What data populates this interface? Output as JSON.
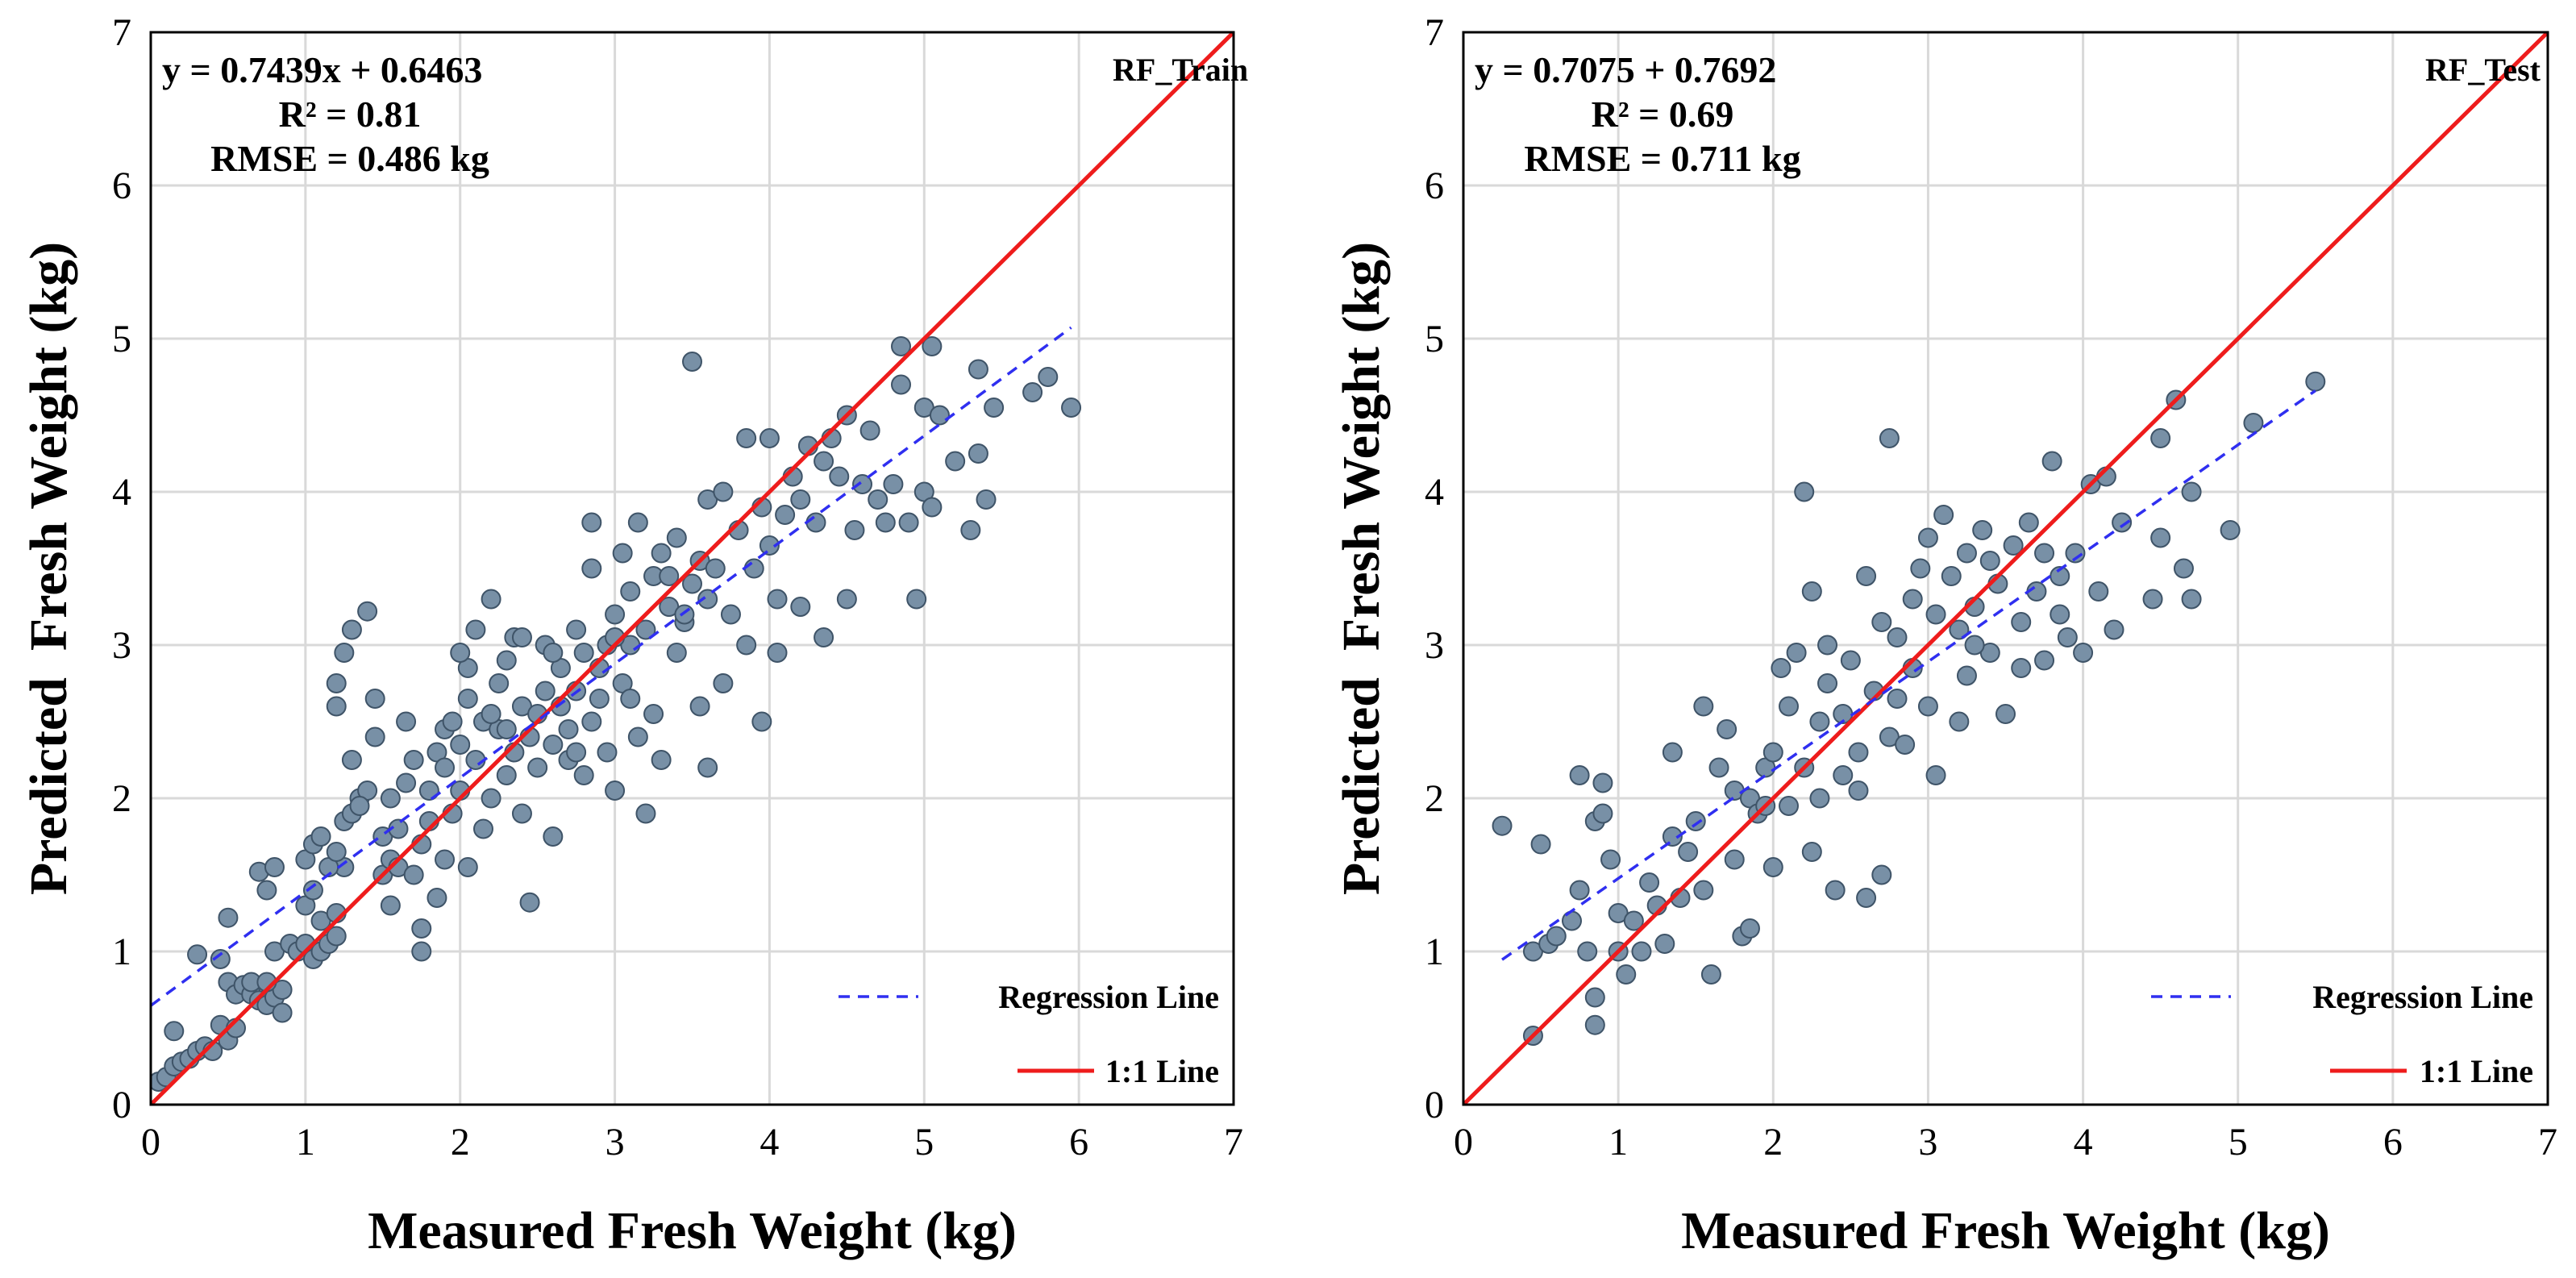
{
  "colors": {
    "point_fill": "#7890a6",
    "point_stroke": "#3f5468",
    "regression": "#2f2ff0",
    "identity": "#ee1c1c",
    "grid": "#d9d9d9",
    "axis": "#000000"
  },
  "chart_data": [
    {
      "type": "scatter",
      "panel_label": "RF_Train",
      "equation": "y = 0.7439x + 0.6463",
      "r2": "R² = 0.81",
      "rmse": "RMSE = 0.486 kg",
      "xlabel": "Measured Fresh Weight (kg)",
      "ylabel": "Predicted  Fresh Weight (kg)",
      "xlim": [
        0,
        7
      ],
      "ylim": [
        0,
        7
      ],
      "xticks": [
        "0",
        "1",
        "2",
        "3",
        "4",
        "5",
        "6",
        "7"
      ],
      "yticks": [
        "0",
        "1",
        "2",
        "3",
        "4",
        "5",
        "6",
        "7"
      ],
      "grid": true,
      "legend_position": "bottom-right",
      "legend": [
        {
          "label": "Regression Line",
          "style": "dashed"
        },
        {
          "label": "1:1 Line",
          "style": "solid"
        }
      ],
      "regression": {
        "slope": 0.7439,
        "intercept": 0.6463,
        "x_range": [
          0,
          5.95
        ]
      },
      "identity_line": {
        "x_range": [
          0,
          7
        ]
      },
      "points": [
        [
          0.05,
          0.15
        ],
        [
          0.1,
          0.18
        ],
        [
          0.15,
          0.25
        ],
        [
          0.2,
          0.28
        ],
        [
          0.25,
          0.3
        ],
        [
          0.3,
          0.35
        ],
        [
          0.35,
          0.38
        ],
        [
          0.15,
          0.48
        ],
        [
          0.4,
          0.35
        ],
        [
          0.45,
          0.52
        ],
        [
          0.5,
          0.42
        ],
        [
          0.55,
          0.5
        ],
        [
          0.3,
          0.98
        ],
        [
          0.45,
          0.95
        ],
        [
          0.5,
          0.8
        ],
        [
          0.55,
          0.72
        ],
        [
          0.6,
          0.78
        ],
        [
          0.65,
          0.72
        ],
        [
          0.7,
          0.68
        ],
        [
          0.75,
          0.65
        ],
        [
          0.8,
          0.7
        ],
        [
          0.85,
          0.6
        ],
        [
          0.85,
          0.75
        ],
        [
          0.65,
          0.8
        ],
        [
          0.75,
          0.8
        ],
        [
          0.7,
          1.52
        ],
        [
          0.5,
          1.22
        ],
        [
          0.75,
          1.4
        ],
        [
          0.8,
          1.55
        ],
        [
          0.8,
          1.0
        ],
        [
          0.9,
          1.05
        ],
        [
          0.95,
          1.0
        ],
        [
          1.0,
          1.05
        ],
        [
          1.05,
          0.95
        ],
        [
          1.1,
          1.0
        ],
        [
          1.15,
          1.05
        ],
        [
          1.2,
          1.1
        ],
        [
          1.0,
          1.3
        ],
        [
          1.05,
          1.4
        ],
        [
          1.1,
          1.2
        ],
        [
          1.2,
          1.25
        ],
        [
          1.25,
          1.55
        ],
        [
          1.0,
          1.6
        ],
        [
          1.05,
          1.7
        ],
        [
          1.1,
          1.75
        ],
        [
          1.15,
          1.55
        ],
        [
          1.2,
          1.65
        ],
        [
          1.25,
          1.85
        ],
        [
          1.3,
          1.9
        ],
        [
          1.35,
          2.0
        ],
        [
          1.4,
          2.05
        ],
        [
          1.2,
          2.6
        ],
        [
          1.2,
          2.75
        ],
        [
          1.25,
          2.95
        ],
        [
          1.3,
          3.1
        ],
        [
          1.4,
          3.22
        ],
        [
          1.3,
          2.25
        ],
        [
          1.35,
          1.95
        ],
        [
          1.45,
          2.4
        ],
        [
          1.45,
          2.65
        ],
        [
          1.5,
          1.5
        ],
        [
          1.5,
          1.75
        ],
        [
          1.55,
          1.6
        ],
        [
          1.55,
          2.0
        ],
        [
          1.6,
          1.55
        ],
        [
          1.6,
          1.8
        ],
        [
          1.65,
          2.1
        ],
        [
          1.7,
          2.25
        ],
        [
          1.7,
          1.5
        ],
        [
          1.75,
          1.7
        ],
        [
          1.75,
          1.0
        ],
        [
          1.75,
          1.15
        ],
        [
          1.8,
          1.85
        ],
        [
          1.8,
          2.05
        ],
        [
          1.85,
          2.3
        ],
        [
          1.85,
          1.35
        ],
        [
          1.9,
          2.45
        ],
        [
          1.9,
          2.2
        ],
        [
          1.95,
          1.9
        ],
        [
          1.95,
          2.5
        ],
        [
          2.0,
          2.05
        ],
        [
          2.0,
          2.35
        ],
        [
          2.05,
          2.65
        ],
        [
          2.05,
          1.55
        ],
        [
          2.05,
          2.85
        ],
        [
          2.1,
          3.1
        ],
        [
          2.1,
          2.25
        ],
        [
          2.15,
          2.5
        ],
        [
          2.15,
          1.8
        ],
        [
          2.2,
          2.0
        ],
        [
          2.2,
          3.3
        ],
        [
          2.25,
          2.75
        ],
        [
          2.25,
          2.45
        ],
        [
          2.3,
          2.15
        ],
        [
          2.3,
          2.9
        ],
        [
          2.35,
          3.05
        ],
        [
          2.35,
          2.3
        ],
        [
          2.4,
          2.6
        ],
        [
          2.4,
          1.9
        ],
        [
          2.45,
          2.4
        ],
        [
          2.45,
          1.32
        ],
        [
          2.5,
          2.55
        ],
        [
          2.5,
          2.2
        ],
        [
          2.55,
          2.7
        ],
        [
          2.55,
          3.0
        ],
        [
          2.6,
          2.35
        ],
        [
          2.6,
          1.75
        ],
        [
          2.65,
          2.6
        ],
        [
          2.65,
          2.85
        ],
        [
          2.7,
          2.45
        ],
        [
          2.7,
          2.25
        ],
        [
          2.75,
          2.7
        ],
        [
          2.75,
          3.1
        ],
        [
          2.8,
          2.95
        ],
        [
          2.8,
          2.15
        ],
        [
          2.85,
          2.5
        ],
        [
          2.85,
          3.5
        ],
        [
          2.85,
          3.8
        ],
        [
          2.9,
          2.65
        ],
        [
          2.9,
          2.85
        ],
        [
          2.95,
          3.0
        ],
        [
          2.95,
          2.3
        ],
        [
          3.0,
          3.2
        ],
        [
          3.0,
          2.05
        ],
        [
          3.05,
          2.75
        ],
        [
          3.05,
          3.6
        ],
        [
          3.1,
          3.35
        ],
        [
          3.1,
          3.0
        ],
        [
          3.15,
          2.4
        ],
        [
          3.15,
          3.8
        ],
        [
          3.2,
          3.1
        ],
        [
          3.2,
          1.9
        ],
        [
          3.25,
          3.45
        ],
        [
          3.25,
          2.55
        ],
        [
          3.3,
          3.6
        ],
        [
          3.3,
          2.25
        ],
        [
          3.35,
          3.25
        ],
        [
          3.35,
          3.45
        ],
        [
          3.4,
          2.95
        ],
        [
          3.4,
          3.7
        ],
        [
          3.45,
          3.15
        ],
        [
          3.5,
          3.4
        ],
        [
          3.5,
          4.85
        ],
        [
          3.55,
          3.55
        ],
        [
          3.55,
          2.6
        ],
        [
          3.6,
          3.3
        ],
        [
          3.6,
          3.95
        ],
        [
          3.6,
          2.2
        ],
        [
          3.65,
          3.5
        ],
        [
          3.7,
          4.0
        ],
        [
          3.7,
          2.75
        ],
        [
          3.75,
          3.2
        ],
        [
          3.8,
          3.75
        ],
        [
          3.85,
          4.35
        ],
        [
          3.85,
          3.0
        ],
        [
          3.9,
          3.5
        ],
        [
          3.95,
          2.5
        ],
        [
          3.95,
          3.9
        ],
        [
          4.0,
          3.65
        ],
        [
          4.0,
          4.35
        ],
        [
          4.05,
          3.3
        ],
        [
          4.05,
          2.95
        ],
        [
          4.1,
          3.85
        ],
        [
          4.15,
          4.1
        ],
        [
          4.2,
          3.95
        ],
        [
          4.2,
          3.25
        ],
        [
          4.25,
          4.3
        ],
        [
          4.3,
          3.8
        ],
        [
          4.35,
          4.2
        ],
        [
          4.35,
          3.05
        ],
        [
          4.4,
          4.35
        ],
        [
          4.45,
          4.1
        ],
        [
          4.5,
          4.5
        ],
        [
          4.5,
          3.3
        ],
        [
          4.55,
          3.75
        ],
        [
          4.6,
          4.05
        ],
        [
          4.65,
          4.4
        ],
        [
          4.7,
          3.95
        ],
        [
          4.75,
          3.8
        ],
        [
          4.8,
          4.05
        ],
        [
          4.85,
          4.7
        ],
        [
          4.85,
          4.95
        ],
        [
          4.9,
          3.8
        ],
        [
          4.95,
          3.3
        ],
        [
          5.0,
          4.55
        ],
        [
          5.0,
          4.0
        ],
        [
          5.05,
          4.95
        ],
        [
          5.05,
          3.9
        ],
        [
          5.1,
          4.5
        ],
        [
          5.2,
          4.2
        ],
        [
          5.3,
          3.75
        ],
        [
          5.35,
          4.25
        ],
        [
          5.35,
          4.8
        ],
        [
          5.4,
          3.95
        ],
        [
          5.45,
          4.55
        ],
        [
          5.7,
          4.65
        ],
        [
          5.8,
          4.75
        ],
        [
          5.95,
          4.55
        ],
        [
          2.2,
          2.55
        ],
        [
          2.6,
          2.95
        ],
        [
          3.0,
          3.05
        ],
        [
          3.45,
          3.2
        ],
        [
          1.65,
          2.5
        ],
        [
          2.0,
          2.95
        ],
        [
          2.4,
          3.05
        ],
        [
          2.75,
          2.3
        ],
        [
          3.1,
          2.65
        ],
        [
          1.55,
          1.3
        ],
        [
          1.9,
          1.6
        ],
        [
          2.3,
          2.45
        ]
      ]
    },
    {
      "type": "scatter",
      "panel_label": "RF_Test",
      "equation": "y = 0.7075 + 0.7692",
      "r2": "R² = 0.69",
      "rmse": "RMSE = 0.711 kg",
      "xlabel": "Measured Fresh Weight (kg)",
      "ylabel": "Predicted  Fresh Weight (kg)",
      "xlim": [
        0,
        7
      ],
      "ylim": [
        0,
        7
      ],
      "xticks": [
        "0",
        "1",
        "2",
        "3",
        "4",
        "5",
        "6",
        "7"
      ],
      "yticks": [
        "0",
        "1",
        "2",
        "3",
        "4",
        "5",
        "6",
        "7"
      ],
      "grid": true,
      "legend_position": "bottom-right",
      "legend": [
        {
          "label": "Regression Line",
          "style": "dashed"
        },
        {
          "label": "1:1 Line",
          "style": "solid"
        }
      ],
      "regression": {
        "slope": 0.7075,
        "intercept": 0.7692,
        "x_range": [
          0.25,
          5.5
        ]
      },
      "identity_line": {
        "x_range": [
          0,
          7
        ]
      },
      "points": [
        [
          0.25,
          1.82
        ],
        [
          0.45,
          0.45
        ],
        [
          0.45,
          1.0
        ],
        [
          0.5,
          1.7
        ],
        [
          0.55,
          1.05
        ],
        [
          0.6,
          1.1
        ],
        [
          0.7,
          1.2
        ],
        [
          0.75,
          1.4
        ],
        [
          0.75,
          2.15
        ],
        [
          0.8,
          1.0
        ],
        [
          0.85,
          0.52
        ],
        [
          0.85,
          0.7
        ],
        [
          0.85,
          1.85
        ],
        [
          0.9,
          2.1
        ],
        [
          0.9,
          1.9
        ],
        [
          0.95,
          1.6
        ],
        [
          1.0,
          1.25
        ],
        [
          1.0,
          1.0
        ],
        [
          1.05,
          0.85
        ],
        [
          1.1,
          1.2
        ],
        [
          1.15,
          1.0
        ],
        [
          1.2,
          1.45
        ],
        [
          1.25,
          1.3
        ],
        [
          1.3,
          1.05
        ],
        [
          1.35,
          1.75
        ],
        [
          1.35,
          2.3
        ],
        [
          1.4,
          1.35
        ],
        [
          1.45,
          1.65
        ],
        [
          1.5,
          1.85
        ],
        [
          1.55,
          2.6
        ],
        [
          1.6,
          0.85
        ],
        [
          1.65,
          2.2
        ],
        [
          1.7,
          2.45
        ],
        [
          1.75,
          2.05
        ],
        [
          1.75,
          1.6
        ],
        [
          1.8,
          1.1
        ],
        [
          1.85,
          1.15
        ],
        [
          1.85,
          2.0
        ],
        [
          1.9,
          1.9
        ],
        [
          1.95,
          2.2
        ],
        [
          2.0,
          1.55
        ],
        [
          2.0,
          2.3
        ],
        [
          2.05,
          2.85
        ],
        [
          2.1,
          2.6
        ],
        [
          2.1,
          1.95
        ],
        [
          2.15,
          2.95
        ],
        [
          2.2,
          2.2
        ],
        [
          2.2,
          4.0
        ],
        [
          2.25,
          3.35
        ],
        [
          2.25,
          1.65
        ],
        [
          2.3,
          2.5
        ],
        [
          2.3,
          2.0
        ],
        [
          2.35,
          2.75
        ],
        [
          2.4,
          1.4
        ],
        [
          2.45,
          2.55
        ],
        [
          2.5,
          2.9
        ],
        [
          2.55,
          2.3
        ],
        [
          2.6,
          3.45
        ],
        [
          2.6,
          1.35
        ],
        [
          2.65,
          2.7
        ],
        [
          2.7,
          3.15
        ],
        [
          2.7,
          1.5
        ],
        [
          2.75,
          4.35
        ],
        [
          2.75,
          2.4
        ],
        [
          2.8,
          3.05
        ],
        [
          2.85,
          2.35
        ],
        [
          2.9,
          3.3
        ],
        [
          2.9,
          2.85
        ],
        [
          2.95,
          3.5
        ],
        [
          3.0,
          2.6
        ],
        [
          3.0,
          3.7
        ],
        [
          3.05,
          2.15
        ],
        [
          3.1,
          3.85
        ],
        [
          3.15,
          3.45
        ],
        [
          3.2,
          3.1
        ],
        [
          3.2,
          2.5
        ],
        [
          3.25,
          3.6
        ],
        [
          3.25,
          2.8
        ],
        [
          3.3,
          3.25
        ],
        [
          3.35,
          3.75
        ],
        [
          3.4,
          2.95
        ],
        [
          3.45,
          3.4
        ],
        [
          3.5,
          2.55
        ],
        [
          3.55,
          3.65
        ],
        [
          3.6,
          3.15
        ],
        [
          3.6,
          2.85
        ],
        [
          3.65,
          3.8
        ],
        [
          3.7,
          3.35
        ],
        [
          3.75,
          2.9
        ],
        [
          3.75,
          3.6
        ],
        [
          3.8,
          4.2
        ],
        [
          3.85,
          3.45
        ],
        [
          3.9,
          3.05
        ],
        [
          3.95,
          3.6
        ],
        [
          4.0,
          2.95
        ],
        [
          4.05,
          4.05
        ],
        [
          4.1,
          3.35
        ],
        [
          4.15,
          4.1
        ],
        [
          4.2,
          3.1
        ],
        [
          4.25,
          3.8
        ],
        [
          4.45,
          3.3
        ],
        [
          4.5,
          4.35
        ],
        [
          4.5,
          3.7
        ],
        [
          4.6,
          4.6
        ],
        [
          4.65,
          3.5
        ],
        [
          4.7,
          3.3
        ],
        [
          4.7,
          4.0
        ],
        [
          4.95,
          3.75
        ],
        [
          5.1,
          4.45
        ],
        [
          5.5,
          4.72
        ],
        [
          2.35,
          3.0
        ],
        [
          2.55,
          2.05
        ],
        [
          3.4,
          3.55
        ],
        [
          3.85,
          3.2
        ],
        [
          1.95,
          1.95
        ],
        [
          2.45,
          2.15
        ],
        [
          2.8,
          2.65
        ],
        [
          3.3,
          3.0
        ],
        [
          1.55,
          1.4
        ],
        [
          3.05,
          3.2
        ]
      ]
    }
  ]
}
